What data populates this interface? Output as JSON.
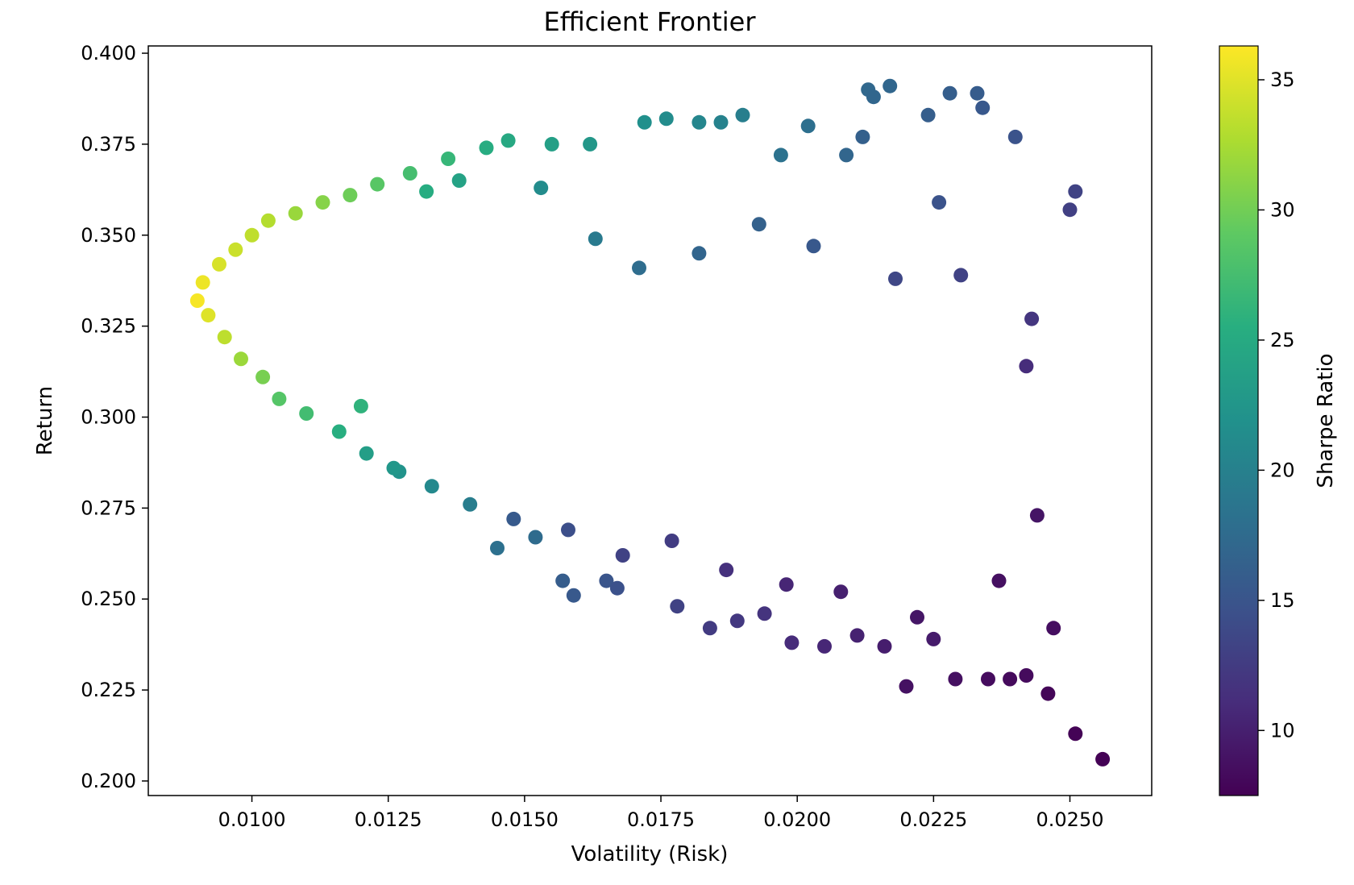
{
  "chart_data": {
    "type": "scatter",
    "title": "Efficient Frontier",
    "xlabel": "Volatility (Risk)",
    "ylabel": "Return",
    "xlim": [
      0.0081,
      0.0265
    ],
    "ylim": [
      0.196,
      0.402
    ],
    "xticks": [
      0.01,
      0.0125,
      0.015,
      0.0175,
      0.02,
      0.0225,
      0.025
    ],
    "xtick_labels": [
      "0.0100",
      "0.0125",
      "0.0150",
      "0.0175",
      "0.0200",
      "0.0225",
      "0.0250"
    ],
    "yticks": [
      0.2,
      0.225,
      0.25,
      0.275,
      0.3,
      0.325,
      0.35,
      0.375,
      0.4
    ],
    "ytick_labels": [
      "0.200",
      "0.225",
      "0.250",
      "0.275",
      "0.300",
      "0.325",
      "0.350",
      "0.375",
      "0.400"
    ],
    "grid": false,
    "colormap": "viridis",
    "colorbar": {
      "label": "Sharpe Ratio",
      "range": [
        7.5,
        36.3
      ],
      "ticks": [
        10,
        15,
        20,
        25,
        30,
        35
      ],
      "tick_labels": [
        "10",
        "15",
        "20",
        "25",
        "30",
        "35"
      ]
    },
    "series": [
      {
        "color_by": "sharpe_ratio",
        "points": [
          [
            0.009,
            0.332,
            36.0
          ],
          [
            0.0091,
            0.337,
            35.6
          ],
          [
            0.0092,
            0.328,
            34.9
          ],
          [
            0.0094,
            0.342,
            34.6
          ],
          [
            0.0095,
            0.322,
            33.4
          ],
          [
            0.0097,
            0.346,
            34.0
          ],
          [
            0.0098,
            0.316,
            31.9
          ],
          [
            0.01,
            0.35,
            33.5
          ],
          [
            0.0102,
            0.311,
            30.3
          ],
          [
            0.0103,
            0.354,
            33.0
          ],
          [
            0.0105,
            0.305,
            28.5
          ],
          [
            0.0108,
            0.356,
            31.8
          ],
          [
            0.011,
            0.301,
            27.3
          ],
          [
            0.0113,
            0.359,
            30.9
          ],
          [
            0.0116,
            0.296,
            25.5
          ],
          [
            0.0118,
            0.361,
            29.8
          ],
          [
            0.0121,
            0.29,
            23.5
          ],
          [
            0.0123,
            0.364,
            28.7
          ],
          [
            0.0127,
            0.285,
            22.2
          ],
          [
            0.0129,
            0.367,
            27.5
          ],
          [
            0.0133,
            0.281,
            21.0
          ],
          [
            0.0136,
            0.371,
            26.5
          ],
          [
            0.014,
            0.276,
            19.6
          ],
          [
            0.0143,
            0.374,
            25.3
          ],
          [
            0.0145,
            0.264,
            18.1
          ],
          [
            0.0147,
            0.376,
            24.8
          ],
          [
            0.0152,
            0.267,
            17.5
          ],
          [
            0.0155,
            0.375,
            23.6
          ],
          [
            0.0157,
            0.255,
            15.9
          ],
          [
            0.0159,
            0.251,
            15.5
          ],
          [
            0.0162,
            0.375,
            22.7
          ],
          [
            0.0165,
            0.255,
            15.0
          ],
          [
            0.0167,
            0.253,
            14.6
          ],
          [
            0.0172,
            0.381,
            21.8
          ],
          [
            0.0176,
            0.382,
            21.3
          ],
          [
            0.0178,
            0.248,
            13.1
          ],
          [
            0.0182,
            0.381,
            20.6
          ],
          [
            0.0184,
            0.242,
            12.5
          ],
          [
            0.0186,
            0.381,
            20.1
          ],
          [
            0.019,
            0.383,
            19.7
          ],
          [
            0.0189,
            0.244,
            12.2
          ],
          [
            0.0194,
            0.246,
            11.8
          ],
          [
            0.0197,
            0.372,
            18.3
          ],
          [
            0.0199,
            0.238,
            11.0
          ],
          [
            0.0202,
            0.38,
            18.0
          ],
          [
            0.0205,
            0.237,
            10.6
          ],
          [
            0.0209,
            0.372,
            16.9
          ],
          [
            0.0211,
            0.24,
            10.2
          ],
          [
            0.0213,
            0.39,
            17.2
          ],
          [
            0.0214,
            0.388,
            17.0
          ],
          [
            0.0217,
            0.391,
            17.0
          ],
          [
            0.0216,
            0.237,
            9.8
          ],
          [
            0.022,
            0.226,
            8.8
          ],
          [
            0.0224,
            0.383,
            16.0
          ],
          [
            0.0225,
            0.239,
            9.6
          ],
          [
            0.0228,
            0.389,
            16.1
          ],
          [
            0.0229,
            0.228,
            8.7
          ],
          [
            0.0233,
            0.389,
            15.8
          ],
          [
            0.0234,
            0.385,
            15.4
          ],
          [
            0.0235,
            0.228,
            8.4
          ],
          [
            0.0239,
            0.228,
            8.2
          ],
          [
            0.024,
            0.377,
            14.8
          ],
          [
            0.0242,
            0.229,
            8.3
          ],
          [
            0.0246,
            0.224,
            7.9
          ],
          [
            0.0247,
            0.242,
            8.6
          ],
          [
            0.025,
            0.357,
            12.9
          ],
          [
            0.0251,
            0.362,
            13.2
          ],
          [
            0.0251,
            0.213,
            7.7
          ],
          [
            0.0256,
            0.206,
            7.6
          ],
          [
            0.0243,
            0.327,
            12.0
          ],
          [
            0.0242,
            0.314,
            11.1
          ],
          [
            0.0244,
            0.273,
            9.1
          ],
          [
            0.0237,
            0.255,
            8.7
          ],
          [
            0.023,
            0.339,
            13.1
          ],
          [
            0.0226,
            0.359,
            14.8
          ],
          [
            0.0222,
            0.245,
            9.2
          ],
          [
            0.0218,
            0.338,
            13.6
          ],
          [
            0.0212,
            0.377,
            16.3
          ],
          [
            0.0208,
            0.252,
            10.0
          ],
          [
            0.0203,
            0.347,
            15.4
          ],
          [
            0.0198,
            0.254,
            10.5
          ],
          [
            0.0193,
            0.353,
            16.4
          ],
          [
            0.0187,
            0.258,
            11.5
          ],
          [
            0.0182,
            0.345,
            16.8
          ],
          [
            0.0177,
            0.266,
            12.6
          ],
          [
            0.0171,
            0.341,
            17.7
          ],
          [
            0.0168,
            0.262,
            13.1
          ],
          [
            0.0163,
            0.349,
            19.2
          ],
          [
            0.0158,
            0.269,
            14.4
          ],
          [
            0.0153,
            0.363,
            21.3
          ],
          [
            0.0148,
            0.272,
            15.6
          ],
          [
            0.0138,
            0.365,
            24.0
          ],
          [
            0.0132,
            0.362,
            25.2
          ],
          [
            0.0126,
            0.286,
            22.6
          ],
          [
            0.012,
            0.303,
            26.0
          ]
        ]
      }
    ]
  }
}
